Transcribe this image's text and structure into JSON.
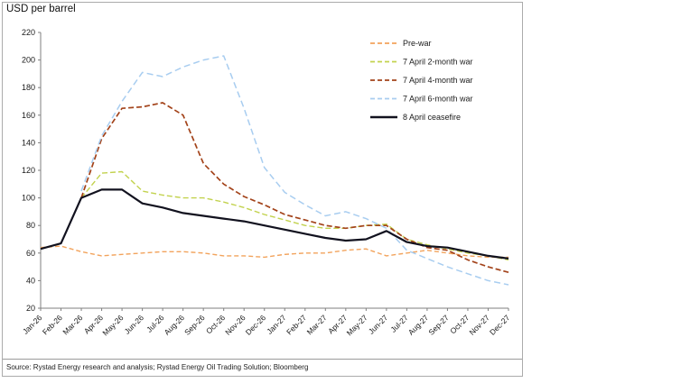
{
  "title": "USD per barrel",
  "source": "Source: Rystad Energy research and analysis; Rystad Energy Oil Trading Solution; Bloomberg",
  "chart_data": {
    "type": "line",
    "title": "USD per barrel",
    "xlabel": "",
    "ylabel": "USD per barrel",
    "ylim": [
      20,
      220
    ],
    "ytick_step": 20,
    "grid": false,
    "legend_position": "top-right-inside",
    "x": [
      "Jan-26",
      "Feb-26",
      "Mar-26",
      "Apr-26",
      "May-26",
      "Jun-26",
      "Jul-26",
      "Aug-26",
      "Sep-26",
      "Oct-26",
      "Nov-26",
      "Dec-26",
      "Jan-27",
      "Feb-27",
      "Mar-27",
      "Apr-27",
      "May-27",
      "Jun-27",
      "Jul-27",
      "Aug-27",
      "Sep-27",
      "Oct-27",
      "Nov-27",
      "Dec-27"
    ],
    "series": [
      {
        "name": "Pre-war",
        "color": "#f2a35c",
        "dash": "5 3",
        "width": 1.4,
        "values": [
          64,
          65,
          61,
          58,
          59,
          60,
          61,
          61,
          60,
          58,
          58,
          57,
          59,
          60,
          60,
          62,
          63,
          58,
          60,
          62,
          60,
          58,
          57,
          57
        ]
      },
      {
        "name": "7 April 2-month war",
        "color": "#c2d24d",
        "dash": "6 3",
        "width": 1.4,
        "values": [
          null,
          null,
          100,
          118,
          119,
          105,
          102,
          100,
          100,
          97,
          93,
          88,
          84,
          80,
          78,
          78,
          80,
          81,
          70,
          66,
          63,
          60,
          58,
          55
        ]
      },
      {
        "name": "7 April 4-month war",
        "color": "#a3431a",
        "dash": "6 3",
        "width": 1.7,
        "values": [
          null,
          null,
          100,
          143,
          165,
          166,
          169,
          160,
          125,
          110,
          101,
          95,
          88,
          84,
          80,
          78,
          80,
          80,
          70,
          64,
          62,
          55,
          50,
          46
        ]
      },
      {
        "name": "7 April 6-month war",
        "color": "#a8cdf0",
        "dash": "7 4",
        "width": 1.5,
        "values": [
          null,
          null,
          105,
          145,
          170,
          191,
          188,
          195,
          200,
          203,
          165,
          122,
          104,
          95,
          87,
          90,
          85,
          78,
          62,
          56,
          50,
          45,
          40,
          37
        ]
      },
      {
        "name": "8 April ceasefire",
        "color": "#12121f",
        "dash": null,
        "width": 2.2,
        "values": [
          63,
          67,
          100,
          106,
          106,
          96,
          93,
          89,
          87,
          85,
          83,
          80,
          77,
          74,
          71,
          69,
          70,
          76,
          68,
          65,
          64,
          61,
          58,
          56
        ]
      }
    ]
  }
}
